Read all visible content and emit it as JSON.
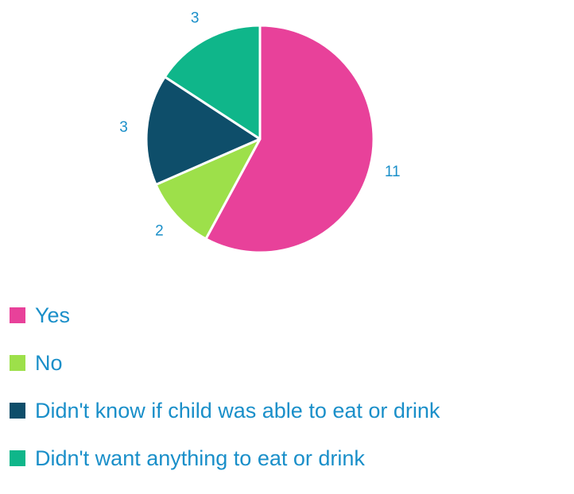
{
  "chart_data": {
    "type": "pie",
    "title": "",
    "categories": [
      "Yes",
      "No",
      "Didn't know if child was able to eat or drink",
      "Didn't want anything to eat or drink"
    ],
    "values": [
      11,
      2,
      3,
      3
    ],
    "colors": [
      "#e8419a",
      "#9de04a",
      "#0e4e6a",
      "#0fb68a"
    ],
    "data_labels": [
      "11",
      "2",
      "3",
      "3"
    ],
    "legend_position": "bottom-left",
    "label_color": "#1a8fc9"
  }
}
